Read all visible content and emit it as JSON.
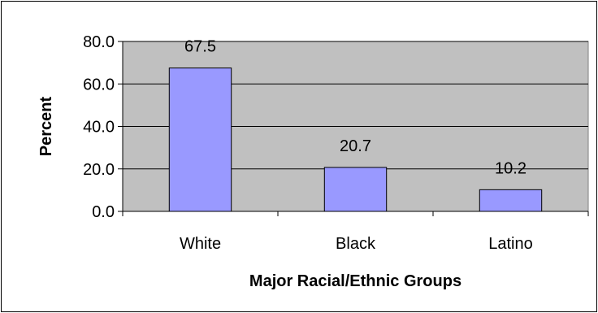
{
  "chart_data": {
    "type": "bar",
    "title": "",
    "xlabel": "Major Racial/Ethnic Groups",
    "ylabel": "Percent",
    "categories": [
      "White",
      "Black",
      "Latino"
    ],
    "values": [
      67.5,
      20.7,
      10.2
    ],
    "value_labels": [
      "67.5",
      "20.7",
      "10.2"
    ],
    "ylim": [
      0,
      80
    ],
    "yticks": [
      0,
      20,
      40,
      60,
      80
    ],
    "ytick_labels": [
      "0.0",
      "20.0",
      "40.0",
      "60.0",
      "80.0"
    ],
    "grid": true,
    "legend": "none",
    "colors": {
      "bar_fill": "#9999ff",
      "plot_background": "#c0c0c0"
    }
  }
}
